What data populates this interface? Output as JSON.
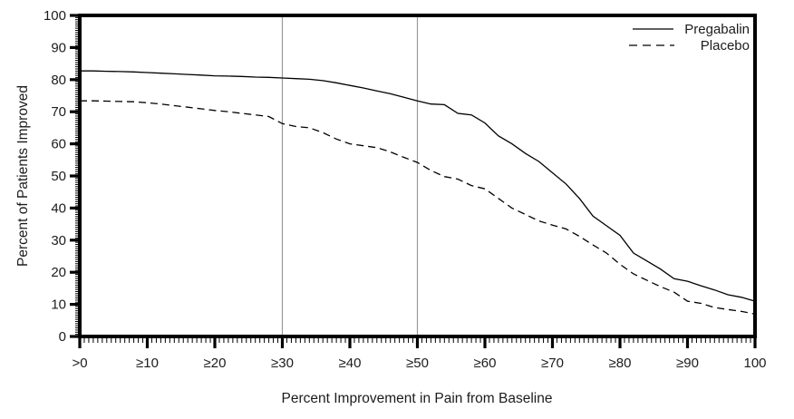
{
  "colors": {
    "background": "#ffffff",
    "curve": "#000000",
    "axis": "#000000",
    "gridline": "#9a9a9a",
    "text": "#1c1c1c"
  },
  "legend": {
    "pregabalin_label": "Pregabalin",
    "placebo_label": "Placebo"
  },
  "chart_data": {
    "type": "line",
    "title": "",
    "xlabel": "Percent Improvement in Pain from Baseline",
    "ylabel": "Percent of Patients Improved",
    "xlim": [
      0,
      100
    ],
    "ylim": [
      0,
      100
    ],
    "grid": "vertical-only",
    "gridlines_x": [
      30,
      50
    ],
    "legend_position": "top-right-inside",
    "x_tick_values": [
      0,
      10,
      20,
      30,
      40,
      50,
      60,
      70,
      80,
      90,
      100
    ],
    "x_tick_labels": [
      ">0",
      "≥10",
      "≥20",
      "≥30",
      "≥40",
      "≥50",
      "≥60",
      "≥70",
      "≥80",
      "≥90",
      "100"
    ],
    "y_tick_values": [
      0,
      10,
      20,
      30,
      40,
      50,
      60,
      70,
      80,
      90,
      100
    ],
    "y_tick_labels": [
      "0",
      "10",
      "20",
      "30",
      "40",
      "50",
      "60",
      "70",
      "80",
      "90",
      "100"
    ],
    "x": [
      0,
      2,
      4,
      6,
      8,
      10,
      12,
      14,
      16,
      18,
      20,
      22,
      24,
      26,
      28,
      30,
      32,
      34,
      36,
      38,
      40,
      42,
      44,
      46,
      48,
      50,
      52,
      54,
      56,
      58,
      60,
      62,
      64,
      66,
      68,
      70,
      72,
      74,
      76,
      78,
      80,
      82,
      84,
      86,
      88,
      90,
      92,
      94,
      96,
      98,
      100
    ],
    "series": [
      {
        "name": "Pregabalin",
        "style": "solid",
        "color": "#000000",
        "values": [
          82.7,
          82.7,
          82.6,
          82.5,
          82.4,
          82.2,
          82.0,
          81.8,
          81.6,
          81.4,
          81.2,
          81.1,
          81.0,
          80.8,
          80.7,
          80.5,
          80.3,
          80.1,
          79.7,
          79.0,
          78.2,
          77.4,
          76.5,
          75.6,
          74.5,
          73.4,
          72.4,
          72.2,
          69.5,
          69.0,
          66.5,
          62.5,
          60.0,
          57.0,
          54.5,
          51.0,
          47.5,
          43.0,
          37.5,
          34.5,
          31.5,
          26.0,
          23.5,
          21.0,
          18.0,
          17.2,
          15.8,
          14.5,
          13.0,
          12.2,
          11.0
        ]
      },
      {
        "name": "Placebo",
        "style": "dashed",
        "color": "#000000",
        "values": [
          73.4,
          73.4,
          73.3,
          73.2,
          73.1,
          72.8,
          72.4,
          71.9,
          71.4,
          70.9,
          70.4,
          70.0,
          69.5,
          69.0,
          68.5,
          66.3,
          65.4,
          65.0,
          63.5,
          61.5,
          60.0,
          59.4,
          58.8,
          57.5,
          55.8,
          54.2,
          51.7,
          49.8,
          49.0,
          47.0,
          46.0,
          43.0,
          40.0,
          38.0,
          36.0,
          34.7,
          33.5,
          31.2,
          28.5,
          26.0,
          22.5,
          19.5,
          17.5,
          15.5,
          13.8,
          11.0,
          10.3,
          9.0,
          8.4,
          7.8,
          7.0
        ]
      }
    ]
  }
}
